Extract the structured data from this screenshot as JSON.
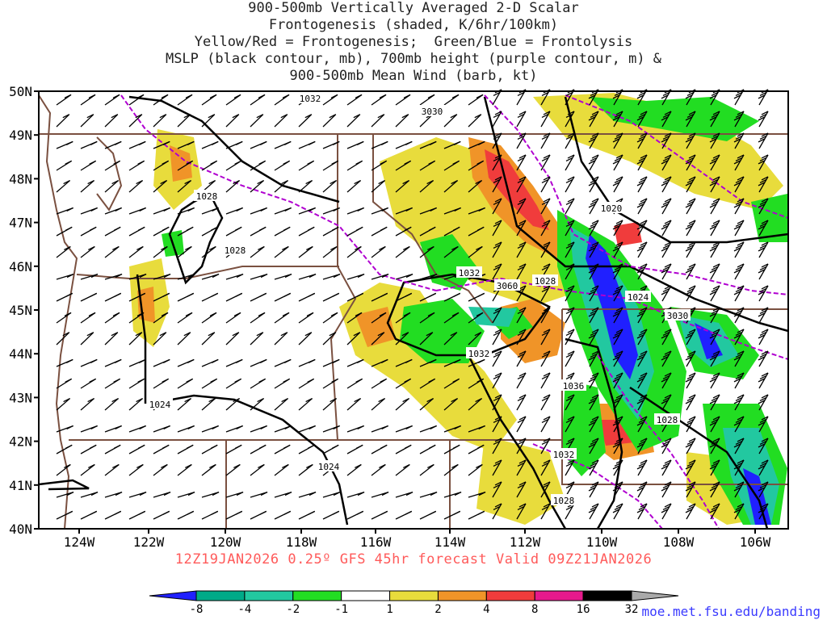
{
  "title": {
    "lines": [
      "900-500mb Vertically Averaged 2-D Scalar",
      "Frontogenesis (shaded, K/6hr/100km)",
      "Yellow/Red = Frontogenesis;  Green/Blue = Frontolysis",
      "MSLP (black contour, mb), 700mb height (purple contour, m) &",
      "900-500mb Mean Wind (barb, kt)"
    ]
  },
  "map": {
    "lat_labels": [
      "50N",
      "49N",
      "48N",
      "47N",
      "46N",
      "45N",
      "44N",
      "43N",
      "42N",
      "41N",
      "40N"
    ],
    "lon_labels": [
      "124W",
      "122W",
      "120W",
      "118W",
      "116W",
      "114W",
      "112W",
      "110W",
      "108W",
      "106W"
    ],
    "mslp_labels": [
      "1032",
      "1028",
      "1028",
      "1020",
      "1032",
      "1028",
      "1024",
      "1032",
      "1036",
      "1028",
      "1024",
      "1024",
      "1032",
      "1028"
    ],
    "height_labels": [
      "3030",
      "3060",
      "3030"
    ],
    "colors": {
      "mslp": "#000000",
      "height": "#b000d0",
      "borders": "#7a5040",
      "barbs": "#000000"
    }
  },
  "valid_line": "12Z19JAN2026 0.25º GFS 45hr forecast Valid 09Z21JAN2026",
  "colorbar": {
    "labels": [
      "-8",
      "-4",
      "-2",
      "-1",
      "1",
      "2",
      "4",
      "8",
      "16",
      "32"
    ],
    "colors": [
      "#2020ff",
      "#00aa88",
      "#22c8a0",
      "#22dd22",
      "#ffffff",
      "#e8dc3c",
      "#f09428",
      "#f03c3c",
      "#e6198c",
      "#000000",
      "#aaaaaa"
    ]
  },
  "credit": "moe.met.fsu.edu/banding"
}
